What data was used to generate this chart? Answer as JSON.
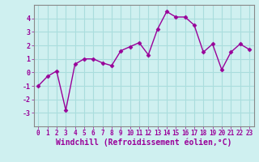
{
  "x": [
    0,
    1,
    2,
    3,
    4,
    5,
    6,
    7,
    8,
    9,
    10,
    11,
    12,
    13,
    14,
    15,
    16,
    17,
    18,
    19,
    20,
    21,
    22,
    23
  ],
  "y": [
    -1.0,
    -0.3,
    0.1,
    -2.8,
    0.6,
    1.0,
    1.0,
    0.7,
    0.5,
    1.6,
    1.9,
    2.2,
    1.3,
    3.2,
    4.5,
    4.1,
    4.1,
    3.5,
    1.5,
    2.1,
    0.2,
    1.5,
    2.1,
    1.7
  ],
  "line_color": "#990099",
  "marker": "D",
  "marker_size": 2.5,
  "line_width": 1.0,
  "xlabel": "Windchill (Refroidissement éolien,°C)",
  "xlabel_fontsize": 7.0,
  "bg_color": "#cff0f0",
  "grid_color": "#aadddd",
  "tick_color": "#990099",
  "spine_color": "#888888",
  "ylim": [
    -4,
    5
  ],
  "yticks": [
    -3,
    -2,
    -1,
    0,
    1,
    2,
    3,
    4
  ],
  "xticks": [
    0,
    1,
    2,
    3,
    4,
    5,
    6,
    7,
    8,
    9,
    10,
    11,
    12,
    13,
    14,
    15,
    16,
    17,
    18,
    19,
    20,
    21,
    22,
    23
  ],
  "tick_fontsize": 6.0,
  "xtick_fontsize": 5.5
}
